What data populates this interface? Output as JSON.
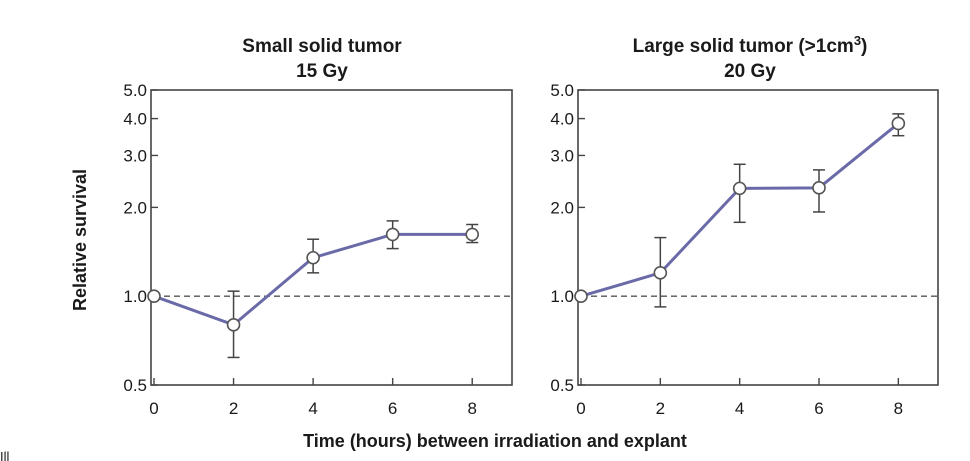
{
  "figure": {
    "ylabel": "Relative survival",
    "xlabel": "Time (hours) between irradiation and explant",
    "corner_text": "Ill"
  },
  "chart_data": [
    {
      "type": "line",
      "title": "Small solid tumor",
      "subtitle": "15 Gy",
      "y_scale": "log",
      "ylim": [
        0.5,
        5.0
      ],
      "y_ticks": [
        0.5,
        1.0,
        2.0,
        3.0,
        4.0,
        5.0
      ],
      "y_tick_labels": [
        "0.5",
        "1.0",
        "2.0",
        "3.0",
        "4.0",
        "5.0"
      ],
      "xlim": [
        0,
        9
      ],
      "x_ticks": [
        0,
        2,
        4,
        6,
        8
      ],
      "x_tick_labels": [
        "0",
        "2",
        "4",
        "6",
        "8"
      ],
      "reference_line": 1.0,
      "series": [
        {
          "x": [
            0,
            2,
            4,
            6,
            8
          ],
          "y": [
            1.0,
            0.8,
            1.35,
            1.62,
            1.62
          ],
          "err_low": [
            null,
            0.62,
            1.2,
            1.45,
            1.52
          ],
          "err_high": [
            null,
            1.04,
            1.56,
            1.8,
            1.75
          ]
        }
      ]
    },
    {
      "type": "line",
      "title": "Large solid tumor (>1cm",
      "title_sup": "3",
      "title_tail": ")",
      "subtitle": "20 Gy",
      "y_scale": "log",
      "ylim": [
        0.5,
        5.0
      ],
      "y_ticks": [
        0.5,
        1.0,
        2.0,
        3.0,
        4.0,
        5.0
      ],
      "y_tick_labels": [
        "0.5",
        "1.0",
        "2.0",
        "3.0",
        "4.0",
        "5.0"
      ],
      "xlim": [
        0,
        9
      ],
      "x_ticks": [
        0,
        2,
        4,
        6,
        8
      ],
      "x_tick_labels": [
        "0",
        "2",
        "4",
        "6",
        "8"
      ],
      "reference_line": 1.0,
      "series": [
        {
          "x": [
            0,
            2,
            4,
            6,
            8
          ],
          "y": [
            1.0,
            1.2,
            2.32,
            2.33,
            3.85
          ],
          "err_low": [
            null,
            0.92,
            1.78,
            1.93,
            3.5
          ],
          "err_high": [
            null,
            1.58,
            2.8,
            2.68,
            4.15
          ]
        }
      ]
    }
  ]
}
